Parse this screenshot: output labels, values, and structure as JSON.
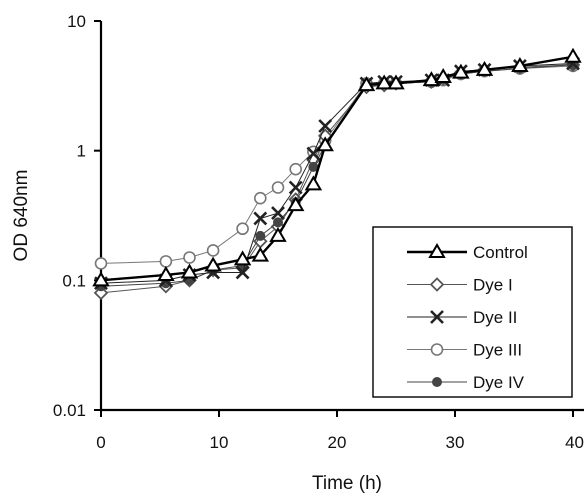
{
  "chart_data": {
    "type": "line",
    "title": "",
    "xlabel": "Time (h)",
    "ylabel": "OD 640nm",
    "xlim": [
      0,
      40
    ],
    "ylim": [
      0.01,
      10
    ],
    "yscale": "log",
    "grid": false,
    "legend_position": "bottom-right",
    "x_ticks": [
      {
        "value": 0,
        "label": "0"
      },
      {
        "value": 10,
        "label": "10"
      },
      {
        "value": 20,
        "label": "20"
      },
      {
        "value": 30,
        "label": "30"
      },
      {
        "value": 40,
        "label": "40"
      }
    ],
    "y_ticks": [
      {
        "value": 0.01,
        "label": "0.01"
      },
      {
        "value": 0.1,
        "label": "0.1"
      },
      {
        "value": 1,
        "label": "1"
      },
      {
        "value": 10,
        "label": "10"
      }
    ],
    "series": [
      {
        "name": "Control",
        "marker": "triangle",
        "color": "#000000",
        "x": [
          0,
          5.5,
          7.5,
          9.5,
          12,
          13.5,
          15,
          16.5,
          18,
          19,
          22.5,
          24,
          25,
          28,
          29,
          30.5,
          32.5,
          35.5,
          40
        ],
        "y": [
          0.1,
          0.11,
          0.115,
          0.13,
          0.145,
          0.155,
          0.22,
          0.38,
          0.55,
          1.1,
          3.2,
          3.3,
          3.3,
          3.5,
          3.7,
          4.0,
          4.2,
          4.5,
          5.3
        ]
      },
      {
        "name": "Dye I",
        "marker": "diamond",
        "color": "#555555",
        "x": [
          0,
          5.5,
          7.5,
          9.5,
          12,
          13.5,
          15,
          16.5,
          18,
          19,
          22.5,
          24,
          25,
          28,
          29,
          30.5,
          32.5,
          35.5,
          40
        ],
        "y": [
          0.08,
          0.09,
          0.1,
          0.12,
          0.125,
          0.2,
          0.26,
          0.42,
          0.85,
          1.3,
          3.1,
          3.2,
          3.3,
          3.4,
          3.6,
          4.0,
          4.2,
          4.4,
          4.6
        ]
      },
      {
        "name": "Dye II",
        "marker": "x",
        "color": "#222222",
        "x": [
          0,
          5.5,
          7.5,
          9.5,
          12,
          13.5,
          15,
          16.5,
          18,
          19,
          22.5,
          24,
          25,
          28,
          29,
          30.5,
          32.5,
          35.5,
          40
        ],
        "y": [
          0.095,
          0.1,
          0.11,
          0.115,
          0.115,
          0.3,
          0.33,
          0.52,
          0.95,
          1.55,
          3.3,
          3.4,
          3.4,
          3.5,
          3.5,
          4.1,
          4.2,
          4.5,
          4.7
        ]
      },
      {
        "name": "Dye III",
        "marker": "circle",
        "color": "#777777",
        "x": [
          0,
          5.5,
          7.5,
          9.5,
          12,
          13.5,
          15,
          16.5,
          18,
          19,
          22.5,
          24,
          25,
          28,
          29,
          30.5,
          32.5,
          35.5,
          40
        ],
        "y": [
          0.135,
          0.14,
          0.15,
          0.17,
          0.25,
          0.43,
          0.52,
          0.72,
          0.98,
          1.2,
          3.3,
          3.3,
          3.3,
          3.4,
          3.5,
          3.9,
          4.1,
          4.3,
          4.5
        ]
      },
      {
        "name": "Dye IV",
        "marker": "dot",
        "color": "#444444",
        "x": [
          0,
          5.5,
          7.5,
          9.5,
          12,
          13.5,
          15,
          16.5,
          18,
          19,
          22.5,
          24,
          25,
          28,
          29,
          30.5,
          32.5,
          35.5,
          40
        ],
        "y": [
          0.09,
          0.095,
          0.1,
          0.12,
          0.13,
          0.22,
          0.28,
          0.4,
          0.75,
          1.1,
          3.2,
          3.3,
          3.3,
          3.4,
          3.6,
          3.9,
          4.1,
          4.3,
          4.6
        ]
      }
    ]
  }
}
